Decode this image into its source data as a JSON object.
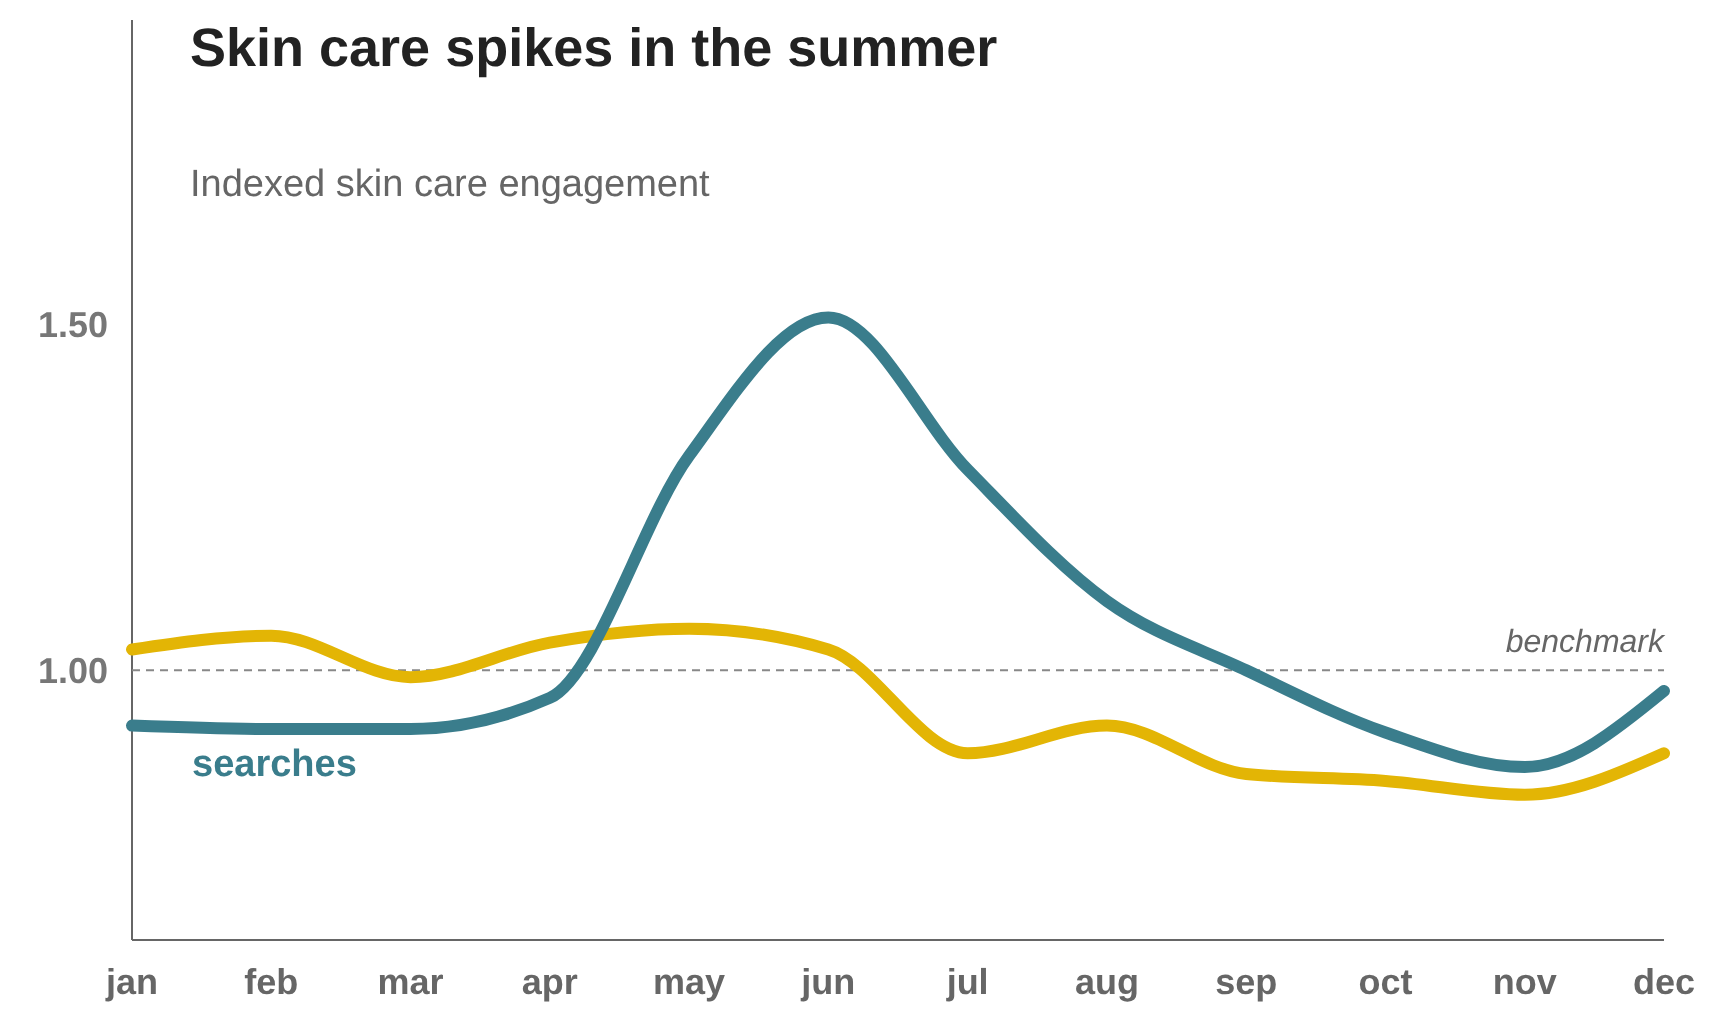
{
  "chart_data": {
    "type": "line",
    "title": "Skin care spikes in the summer",
    "subtitle": "Indexed skin care engagement",
    "categories": [
      "jan",
      "feb",
      "mar",
      "apr",
      "may",
      "jun",
      "jul",
      "aug",
      "sep",
      "oct",
      "nov",
      "dec"
    ],
    "series": [
      {
        "color": "#e3b505",
        "values": [
          1.03,
          1.05,
          0.99,
          1.04,
          1.06,
          1.03,
          0.88,
          0.92,
          0.85,
          0.84,
          0.82,
          0.88
        ]
      },
      {
        "name": "searches",
        "color": "#3a7d8c",
        "values": [
          0.92,
          0.915,
          0.915,
          0.96,
          1.31,
          1.51,
          1.29,
          1.1,
          1.0,
          0.91,
          0.86,
          0.97
        ]
      }
    ],
    "ylim": [
      0.61,
      1.94
    ],
    "yticks": [
      {
        "value": 1,
        "label": "1.00"
      },
      {
        "value": 1.5,
        "label": "1.50"
      }
    ],
    "ref_lines": [
      {
        "axis": "y",
        "value": 1,
        "label": "benchmark",
        "color": "#888888",
        "line_style": "dashed"
      }
    ],
    "grid": false,
    "line_style": "solid",
    "marker": "none"
  }
}
